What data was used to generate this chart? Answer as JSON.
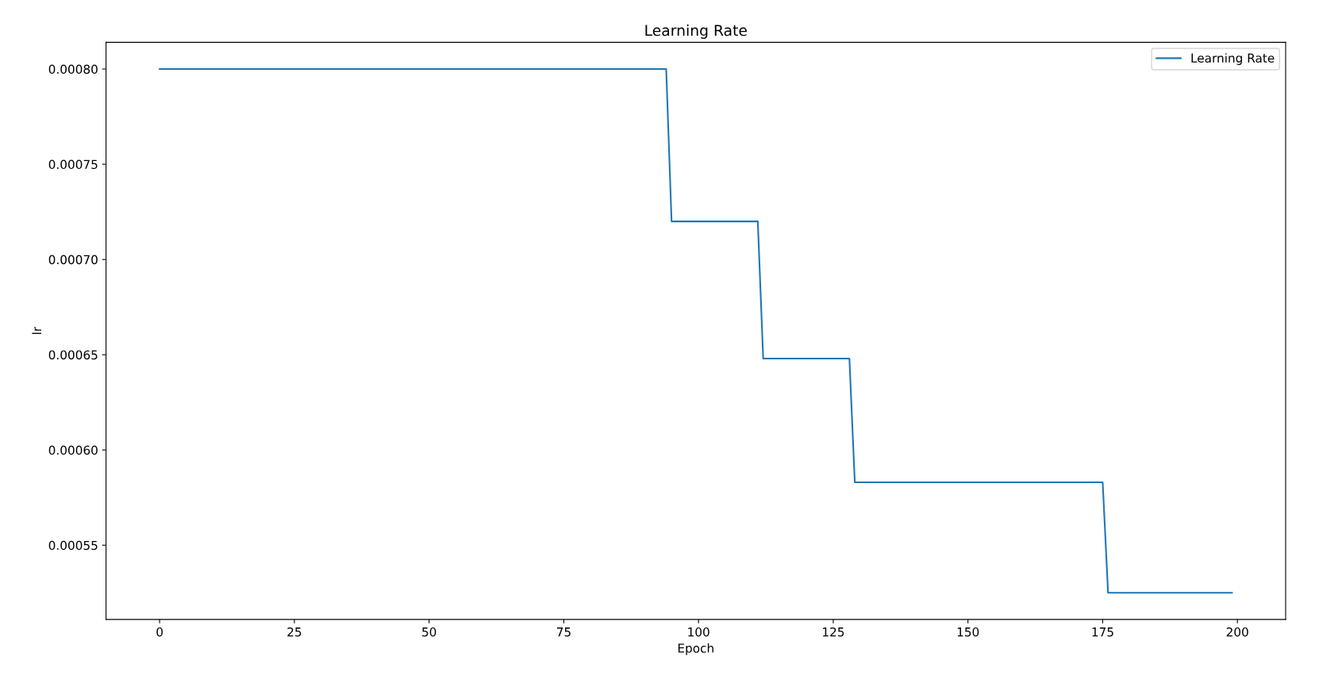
{
  "chart_data": {
    "type": "line",
    "title": "Learning Rate",
    "xlabel": "Epoch",
    "ylabel": "lr",
    "x": [
      0,
      94,
      95,
      111,
      112,
      128,
      129,
      175,
      176,
      199
    ],
    "series": [
      {
        "name": "Learning Rate",
        "color": "#1f77b4",
        "values": [
          0.0008,
          0.0008,
          0.00072,
          0.00072,
          0.000648,
          0.000648,
          0.000583,
          0.000583,
          0.000525,
          0.000525
        ]
      }
    ],
    "xlim": [
      -9.95,
      208.95
    ],
    "xticks": [
      0,
      25,
      50,
      75,
      100,
      125,
      150,
      175,
      200
    ],
    "ylim": [
      0.000511,
      0.000814
    ],
    "yticks": [
      {
        "value": 0.00055,
        "label": "0.00055"
      },
      {
        "value": 0.0006,
        "label": "0.00060"
      },
      {
        "value": 0.00065,
        "label": "0.00065"
      },
      {
        "value": 0.0007,
        "label": "0.00070"
      },
      {
        "value": 0.00075,
        "label": "0.00075"
      },
      {
        "value": 0.0008,
        "label": "0.00080"
      }
    ],
    "grid": false,
    "legend": "top right",
    "marker": "none",
    "line_style": "solid"
  }
}
